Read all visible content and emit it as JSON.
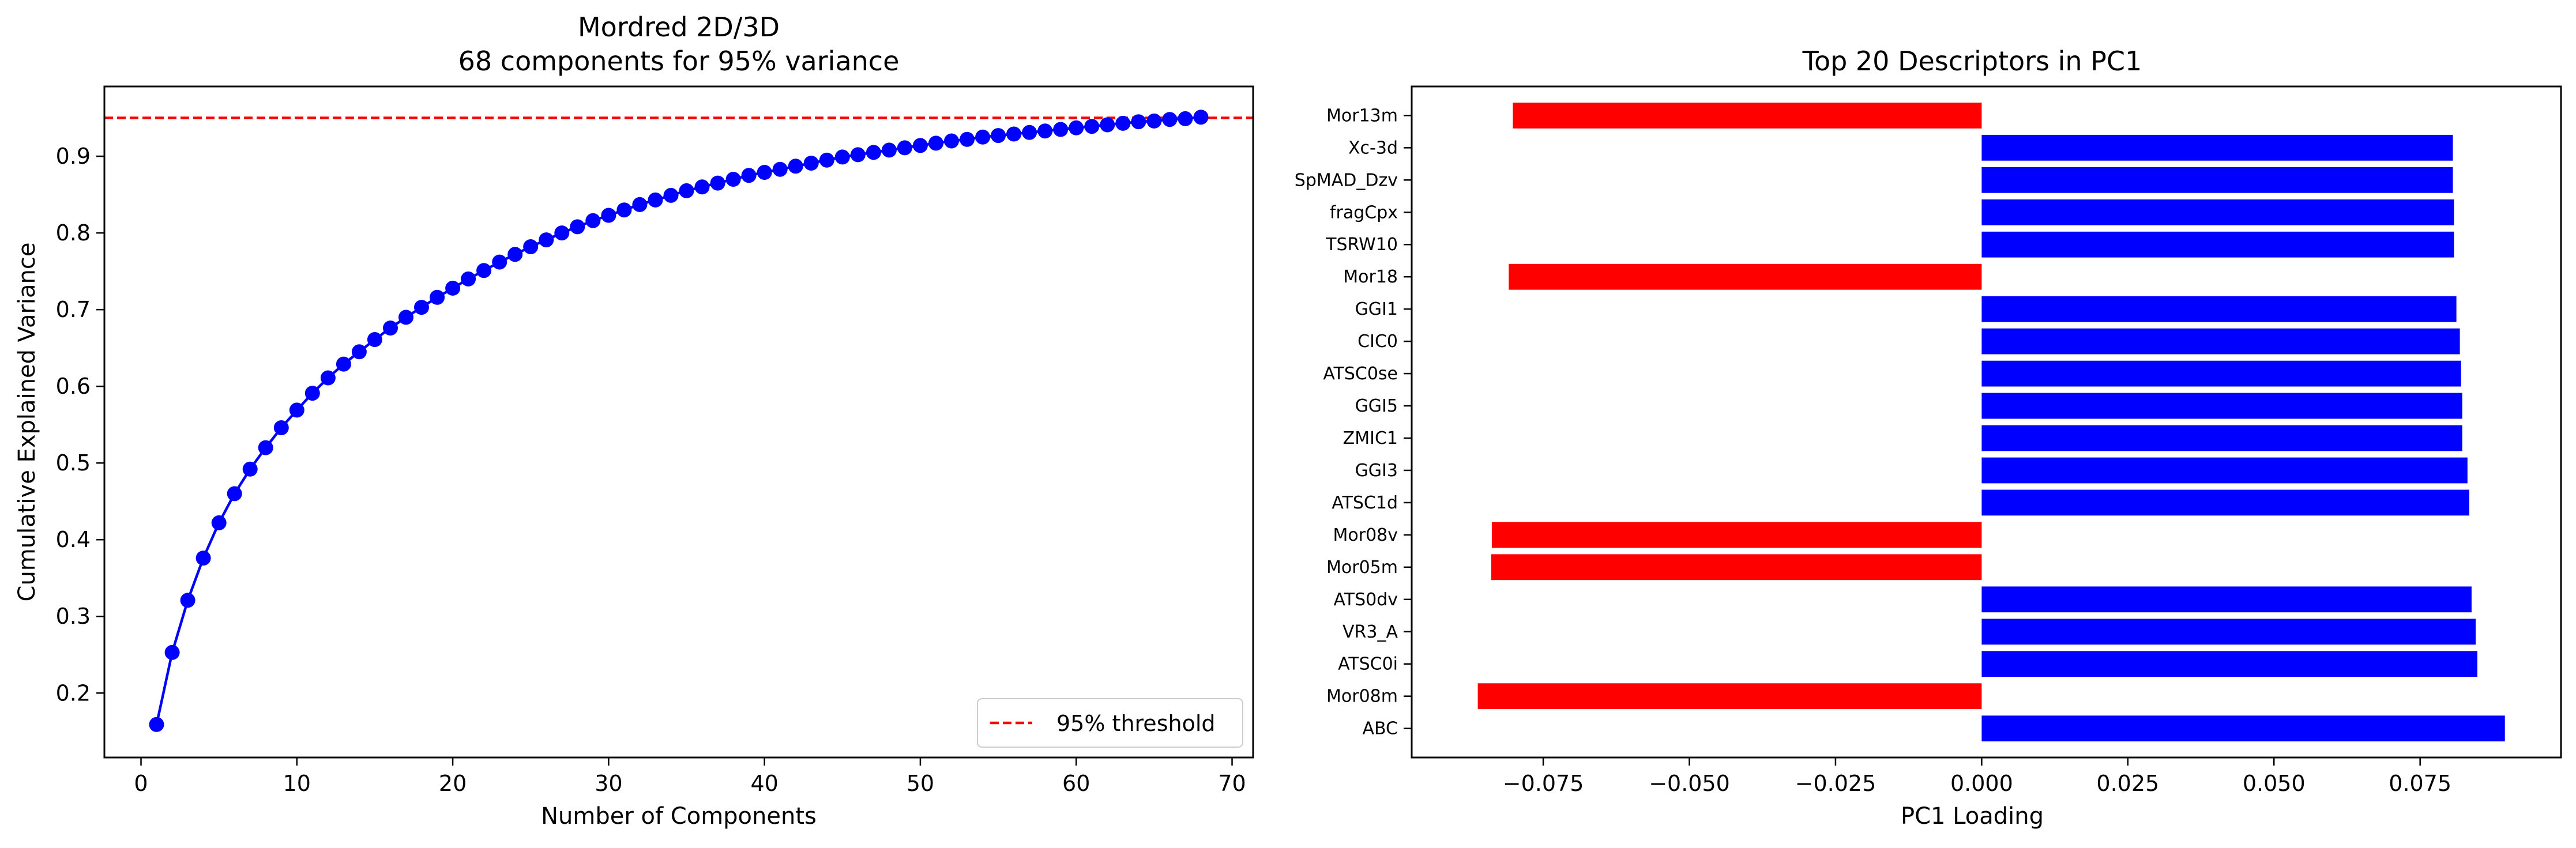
{
  "chart_data": [
    {
      "type": "line",
      "title": "Mordred 2D/3D",
      "subtitle": "68 components for 95% variance",
      "xlabel": "Number of Components",
      "ylabel": "Cumulative Explained Variance",
      "xlim": [
        -2.35,
        71.35
      ],
      "ylim": [
        0.116,
        0.991
      ],
      "xticks": [
        0,
        10,
        20,
        30,
        40,
        50,
        60,
        70
      ],
      "yticks": [
        0.2,
        0.3,
        0.4,
        0.5,
        0.6,
        0.7,
        0.8,
        0.9
      ],
      "grid": false,
      "legend_position": "lower-right",
      "series": [
        {
          "color": "#0000ff",
          "marker": "circle",
          "x": [
            1,
            2,
            3,
            4,
            5,
            6,
            7,
            8,
            9,
            10,
            11,
            12,
            13,
            14,
            15,
            16,
            17,
            18,
            19,
            20,
            21,
            22,
            23,
            24,
            25,
            26,
            27,
            28,
            29,
            30,
            31,
            32,
            33,
            34,
            35,
            36,
            37,
            38,
            39,
            40,
            41,
            42,
            43,
            44,
            45,
            46,
            47,
            48,
            49,
            50,
            51,
            52,
            53,
            54,
            55,
            56,
            57,
            58,
            59,
            60,
            61,
            62,
            63,
            64,
            65,
            66,
            67,
            68
          ],
          "y": [
            0.159,
            0.253,
            0.321,
            0.376,
            0.422,
            0.46,
            0.492,
            0.52,
            0.546,
            0.569,
            0.591,
            0.611,
            0.629,
            0.645,
            0.661,
            0.676,
            0.69,
            0.703,
            0.716,
            0.728,
            0.74,
            0.751,
            0.762,
            0.772,
            0.782,
            0.791,
            0.8,
            0.808,
            0.816,
            0.823,
            0.83,
            0.837,
            0.843,
            0.849,
            0.855,
            0.86,
            0.865,
            0.87,
            0.875,
            0.879,
            0.883,
            0.887,
            0.891,
            0.895,
            0.899,
            0.902,
            0.905,
            0.908,
            0.911,
            0.914,
            0.917,
            0.92,
            0.922,
            0.925,
            0.927,
            0.929,
            0.931,
            0.933,
            0.935,
            0.937,
            0.939,
            0.941,
            0.943,
            0.945,
            0.946,
            0.948,
            0.949,
            0.951
          ]
        }
      ],
      "threshold": {
        "name": "95% threshold",
        "value": 0.95,
        "color": "#ff0000",
        "style": "dashed"
      }
    },
    {
      "type": "bar",
      "orientation": "horizontal",
      "title": "Top 20 Descriptors in PC1",
      "xlabel": "PC1 Loading",
      "ylabel": "",
      "xlim": [
        -0.0975,
        0.0991
      ],
      "xticks": [
        -0.075,
        -0.05,
        -0.025,
        0.0,
        0.025,
        0.05,
        0.075
      ],
      "xtick_labels": [
        "−0.075",
        "−0.050",
        "−0.025",
        "0.000",
        "0.025",
        "0.050",
        "0.075"
      ],
      "grid": false,
      "positive_color": "#0000ff",
      "negative_color": "#ff0000",
      "categories": [
        "ABC",
        "Mor08m",
        "ATSC0i",
        "VR3_A",
        "ATS0dv",
        "Mor05m",
        "Mor08v",
        "ATSC1d",
        "GGI3",
        "ZMIC1",
        "GGI5",
        "ATSC0se",
        "CIC0",
        "GGI1",
        "Mor18",
        "TSRW10",
        "fragCpx",
        "SpMAD_Dzv",
        "Xc-3d",
        "Mor13m"
      ],
      "values": [
        0.0895,
        -0.0862,
        0.0848,
        0.0845,
        0.0838,
        -0.0839,
        -0.0838,
        0.0834,
        0.0831,
        0.0822,
        0.0822,
        0.082,
        0.0818,
        0.0812,
        -0.0809,
        0.0808,
        0.0808,
        0.0806,
        0.0806,
        -0.0802
      ]
    }
  ]
}
